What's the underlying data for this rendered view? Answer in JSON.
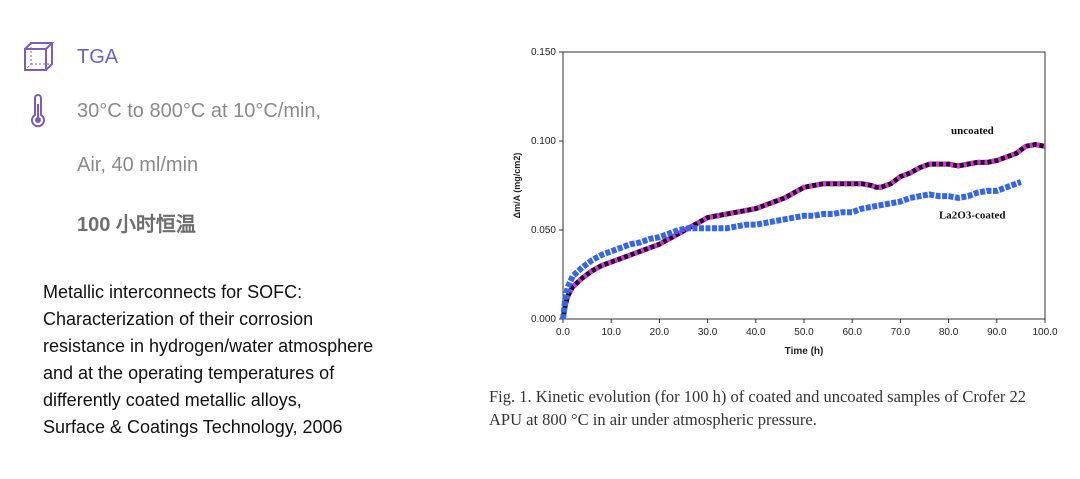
{
  "left_panel": {
    "method": "TGA",
    "temperature_program": "30°C to 800°C at 10°C/min,",
    "atmosphere": "Air, 40 ml/min",
    "hold": "100 小时恒温",
    "reference": {
      "line1": "Metallic interconnects for SOFC:",
      "line2": "Characterization of their corrosion",
      "line3": "resistance in hydrogen/water atmosphere",
      "line4": "and at the operating temperatures of",
      "line5": "differently coated metallic alloys,",
      "line6": "Surface & Coatings Technology,  2006"
    },
    "icons": {
      "method": "cube-icon",
      "temperature": "thermometer-icon"
    },
    "colors": {
      "accent": "#6b5fd6",
      "icon": "#7a5cc4"
    }
  },
  "caption": {
    "line1": "Fig. 1. Kinetic evolution (for 100 h) of coated and uncoated samples of Crofer 22",
    "line2": "APU at 800 °C in air under atmospheric pressure."
  },
  "chart_data": {
    "type": "line",
    "title": "",
    "xlabel": "Time (h)",
    "ylabel": "Δm/A (mg/cm2)",
    "xlim": [
      0,
      100
    ],
    "ylim": [
      0,
      0.15
    ],
    "x_ticks": [
      "0.0",
      "10.0",
      "20.0",
      "30.0",
      "40.0",
      "50.0",
      "60.0",
      "70.0",
      "80.0",
      "90.0",
      "100.0"
    ],
    "y_ticks": [
      "0.000",
      "0.050",
      "0.100",
      "0.150"
    ],
    "grid": false,
    "annotations": {
      "uncoated": "uncoated",
      "coated": "La2O3-coated"
    },
    "series": [
      {
        "name": "uncoated",
        "colors": [
          "#111111",
          "#ee22ee"
        ],
        "x": [
          0,
          0.5,
          1,
          2,
          4,
          6,
          8,
          10,
          12,
          14,
          16,
          18,
          20,
          22,
          24,
          26,
          28,
          30,
          32,
          34,
          36,
          38,
          40,
          42,
          44,
          46,
          48,
          50,
          52,
          54,
          56,
          58,
          60,
          62,
          64,
          65,
          66,
          68,
          70,
          72,
          74,
          76,
          78,
          80,
          82,
          84,
          86,
          88,
          90,
          92,
          94,
          96,
          98,
          100
        ],
        "y": [
          0,
          0.008,
          0.013,
          0.018,
          0.023,
          0.027,
          0.03,
          0.032,
          0.034,
          0.036,
          0.038,
          0.04,
          0.042,
          0.045,
          0.048,
          0.051,
          0.054,
          0.057,
          0.058,
          0.059,
          0.06,
          0.061,
          0.062,
          0.064,
          0.066,
          0.068,
          0.071,
          0.074,
          0.075,
          0.076,
          0.076,
          0.076,
          0.076,
          0.076,
          0.075,
          0.074,
          0.074,
          0.076,
          0.08,
          0.082,
          0.085,
          0.087,
          0.087,
          0.087,
          0.086,
          0.087,
          0.088,
          0.088,
          0.089,
          0.091,
          0.093,
          0.097,
          0.098,
          0.097
        ]
      },
      {
        "name": "La2O3-coated",
        "colors": [
          "#3366ee"
        ],
        "x": [
          0,
          0.5,
          1,
          2,
          4,
          6,
          8,
          10,
          12,
          14,
          16,
          18,
          20,
          22,
          24,
          26,
          28,
          30,
          32,
          34,
          36,
          38,
          40,
          42,
          44,
          46,
          48,
          50,
          52,
          54,
          56,
          58,
          60,
          62,
          64,
          66,
          68,
          70,
          72,
          74,
          76,
          78,
          80,
          82,
          84,
          86,
          88,
          90,
          92,
          94,
          95
        ],
        "y": [
          0,
          0.012,
          0.018,
          0.024,
          0.029,
          0.033,
          0.036,
          0.038,
          0.04,
          0.042,
          0.043,
          0.045,
          0.046,
          0.048,
          0.05,
          0.051,
          0.051,
          0.051,
          0.051,
          0.051,
          0.052,
          0.053,
          0.053,
          0.054,
          0.055,
          0.056,
          0.057,
          0.058,
          0.058,
          0.059,
          0.059,
          0.06,
          0.06,
          0.062,
          0.063,
          0.064,
          0.065,
          0.066,
          0.068,
          0.069,
          0.07,
          0.069,
          0.069,
          0.068,
          0.069,
          0.071,
          0.072,
          0.072,
          0.074,
          0.076,
          0.077
        ]
      }
    ]
  }
}
